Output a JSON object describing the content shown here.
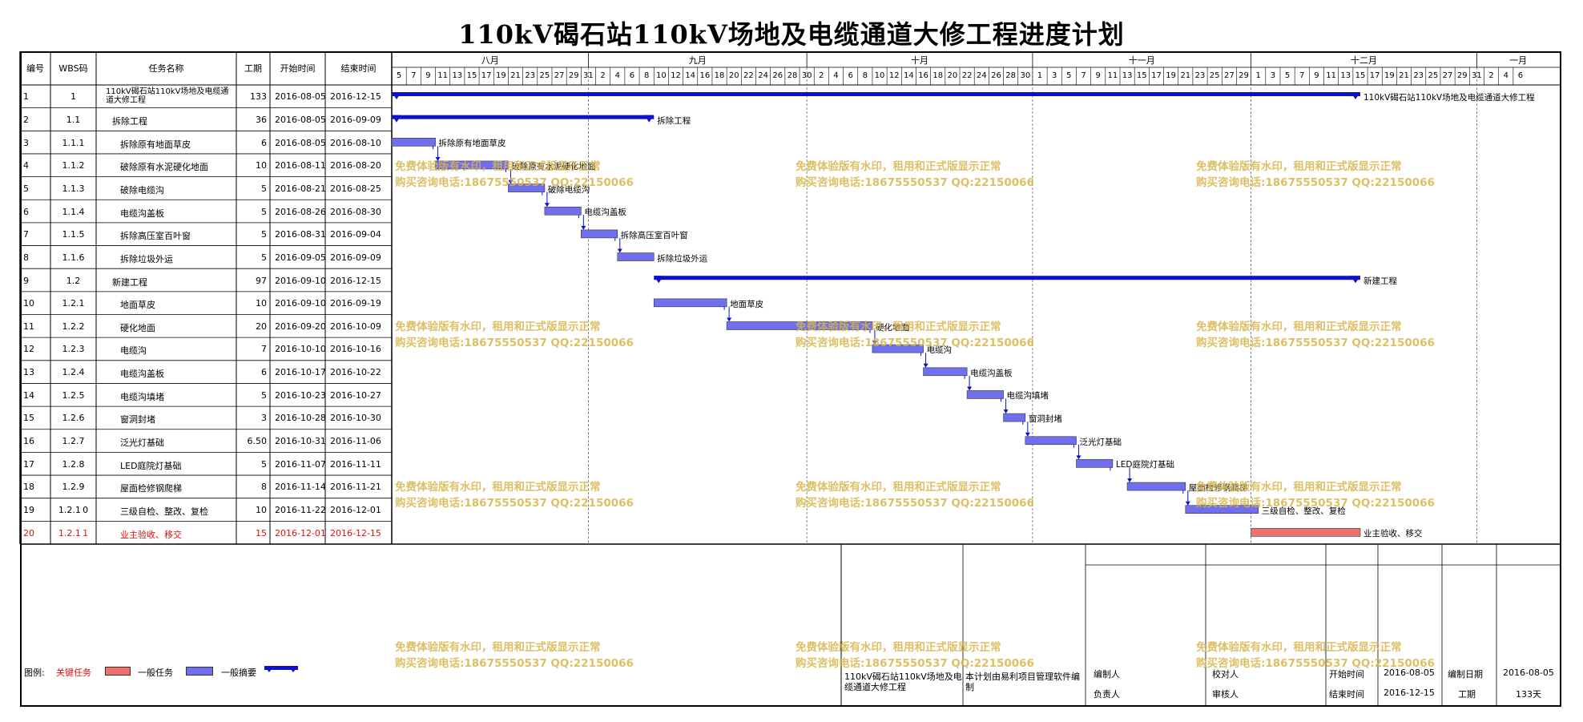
{
  "title": "110kV碣石站110kV场地及电缆通道大修工程进度计划",
  "columns": [
    "编号",
    "WBS码",
    "任务名称",
    "工期",
    "开始时间",
    "结束时间"
  ],
  "months": [
    "八月",
    "九月",
    "十月",
    "十一月",
    "十二月",
    "一月"
  ],
  "chart_data": {
    "type": "gantt",
    "timeline_start": "2016-08-05",
    "timeline_end": "2017-01-07",
    "tick_labels": {
      "aug": [
        "5",
        "7",
        "9",
        "11",
        "13",
        "15",
        "17",
        "19",
        "21",
        "23",
        "25",
        "27",
        "29",
        "31"
      ],
      "sep": [
        "2",
        "4",
        "6",
        "8",
        "10",
        "12",
        "14",
        "16",
        "18",
        "20",
        "22",
        "24",
        "26",
        "28",
        "30"
      ],
      "oct": [
        "2",
        "4",
        "6",
        "8",
        "10",
        "12",
        "14",
        "16",
        "18",
        "20",
        "22",
        "24",
        "26",
        "28",
        "30"
      ],
      "nov": [
        "1",
        "3",
        "5",
        "7",
        "9",
        "11",
        "13",
        "15",
        "17",
        "19",
        "21",
        "23",
        "25",
        "27",
        "29"
      ],
      "dec": [
        "1",
        "3",
        "5",
        "7",
        "9",
        "11",
        "13",
        "15",
        "17",
        "19",
        "21",
        "23",
        "25",
        "27",
        "29",
        "31"
      ],
      "jan": [
        "2",
        "4",
        "6"
      ]
    },
    "tasks": [
      {
        "id": "1",
        "wbs": "1",
        "name": "110kV碣石站110kV场地及电缆通道大修工程",
        "duration": "133",
        "start": "2016-08-05",
        "end": "2016-12-15",
        "kind": "summary",
        "level": 0
      },
      {
        "id": "2",
        "wbs": "1.1",
        "name": "拆除工程",
        "duration": "36",
        "start": "2016-08-05",
        "end": "2016-09-09",
        "kind": "summary",
        "level": 1
      },
      {
        "id": "3",
        "wbs": "1.1.1",
        "name": "拆除原有地面草皮",
        "duration": "6",
        "start": "2016-08-05",
        "end": "2016-08-10",
        "kind": "normal",
        "level": 2
      },
      {
        "id": "4",
        "wbs": "1.1.2",
        "name": "破除原有水泥硬化地面",
        "duration": "10",
        "start": "2016-08-11",
        "end": "2016-08-20",
        "kind": "normal",
        "level": 2
      },
      {
        "id": "5",
        "wbs": "1.1.3",
        "name": "破除电缆沟",
        "duration": "5",
        "start": "2016-08-21",
        "end": "2016-08-25",
        "kind": "normal",
        "level": 2
      },
      {
        "id": "6",
        "wbs": "1.1.4",
        "name": "电缆沟盖板",
        "duration": "5",
        "start": "2016-08-26",
        "end": "2016-08-30",
        "kind": "normal",
        "level": 2
      },
      {
        "id": "7",
        "wbs": "1.1.5",
        "name": "拆除高压室百叶窗",
        "duration": "5",
        "start": "2016-08-31",
        "end": "2016-09-04",
        "kind": "normal",
        "level": 2
      },
      {
        "id": "8",
        "wbs": "1.1.6",
        "name": "拆除垃圾外运",
        "duration": "5",
        "start": "2016-09-05",
        "end": "2016-09-09",
        "kind": "normal",
        "level": 2
      },
      {
        "id": "9",
        "wbs": "1.2",
        "name": "新建工程",
        "duration": "97",
        "start": "2016-09-10",
        "end": "2016-12-15",
        "kind": "summary",
        "level": 1
      },
      {
        "id": "10",
        "wbs": "1.2.1",
        "name": "地面草皮",
        "duration": "10",
        "start": "2016-09-10",
        "end": "2016-09-19",
        "kind": "normal",
        "level": 2
      },
      {
        "id": "11",
        "wbs": "1.2.2",
        "name": "硬化地面",
        "duration": "20",
        "start": "2016-09-20",
        "end": "2016-10-09",
        "kind": "normal",
        "level": 2
      },
      {
        "id": "12",
        "wbs": "1.2.3",
        "name": "电缆沟",
        "duration": "7",
        "start": "2016-10-10",
        "end": "2016-10-16",
        "kind": "normal",
        "level": 2
      },
      {
        "id": "13",
        "wbs": "1.2.4",
        "name": "电缆沟盖板",
        "duration": "6",
        "start": "2016-10-17",
        "end": "2016-10-22",
        "kind": "normal",
        "level": 2
      },
      {
        "id": "14",
        "wbs": "1.2.5",
        "name": "电缆沟填堵",
        "duration": "5",
        "start": "2016-10-23",
        "end": "2016-10-27",
        "kind": "normal",
        "level": 2
      },
      {
        "id": "15",
        "wbs": "1.2.6",
        "name": "窗洞封堵",
        "duration": "3",
        "start": "2016-10-28",
        "end": "2016-10-30",
        "kind": "normal",
        "level": 2
      },
      {
        "id": "16",
        "wbs": "1.2.7",
        "name": "泛光灯基础",
        "duration": "6.50",
        "start": "2016-10-31",
        "end": "2016-11-06",
        "kind": "normal",
        "level": 2
      },
      {
        "id": "17",
        "wbs": "1.2.8",
        "name": "LED庭院灯基础",
        "duration": "5",
        "start": "2016-11-07",
        "end": "2016-11-11",
        "kind": "normal",
        "level": 2
      },
      {
        "id": "18",
        "wbs": "1.2.9",
        "name": "屋面检修钢爬梯",
        "duration": "8",
        "start": "2016-11-14",
        "end": "2016-11-21",
        "kind": "normal",
        "level": 2
      },
      {
        "id": "19",
        "wbs": "1.2.10",
        "name": "三级自检、整改、复检",
        "duration": "10",
        "start": "2016-11-22",
        "end": "2016-12-01",
        "kind": "normal",
        "level": 2
      },
      {
        "id": "20",
        "wbs": "1.2.11",
        "name": "业主验收、移交",
        "duration": "15",
        "start": "2016-12-01",
        "end": "2016-12-15",
        "kind": "critical",
        "level": 2
      }
    ]
  },
  "watermark": {
    "line1": "免费体验版有水印，租用和正式版显示正常",
    "line2": "购买咨询电话:18675550537 QQ:22150066"
  },
  "legend": {
    "label": "图例:",
    "critical": "关键任务",
    "normal": "一般任务",
    "summary": "一般摘要"
  },
  "footer": {
    "project_name": "110kV碣石站110kV场地及电缆通道大修工程",
    "software_note": "本计划由易利项目管理软件编制",
    "editor_label": "编制人",
    "checker_label": "校对人",
    "start_label": "开始时间",
    "start_value": "2016-08-05",
    "compile_date_label": "编制日期",
    "compile_date_value": "2016-08-05",
    "owner_label": "负责人",
    "reviewer_label": "审核人",
    "end_label": "结束时间",
    "end_value": "2016-12-15",
    "duration_label": "工期",
    "duration_value": "133天"
  },
  "colors": {
    "summary": "#1010cc",
    "normal_fill": "#7070ee",
    "critical_fill": "#f07070",
    "critical_text": "#e01010",
    "watermark": "#d8b44a"
  }
}
